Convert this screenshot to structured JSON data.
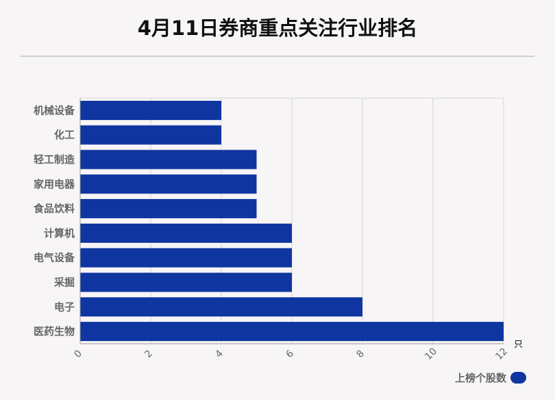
{
  "title": "4月11日券商重点关注行业排名",
  "colors": {
    "bar": "#0f36a0",
    "grid": "#d4d4d4",
    "axis": "#999999"
  },
  "legend": {
    "label": "上榜个股数"
  },
  "chart_data": {
    "type": "bar",
    "orientation": "horizontal",
    "title": "4月11日券商重点关注行业排名",
    "categories": [
      "机械设备",
      "化工",
      "轻工制造",
      "家用电器",
      "食品饮料",
      "计算机",
      "电气设备",
      "采掘",
      "电子",
      "医药生物"
    ],
    "series": [
      {
        "name": "上榜个股数",
        "values": [
          4,
          4,
          5,
          5,
          5,
          6,
          6,
          6,
          8,
          12
        ]
      }
    ],
    "xlim": [
      0,
      12
    ],
    "xticks": [
      0,
      2,
      4,
      6,
      8,
      10,
      12
    ],
    "xunit": "只",
    "grid": true,
    "legend_position": "bottom-right"
  }
}
